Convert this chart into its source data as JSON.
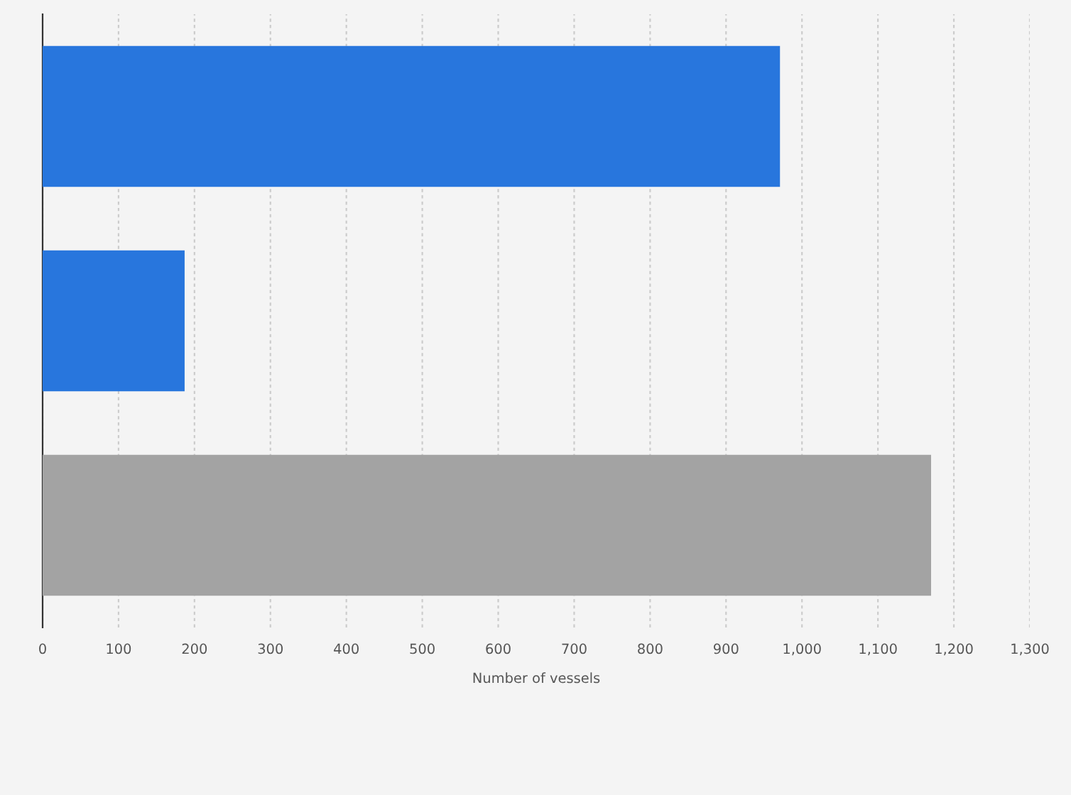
{
  "chart_data": {
    "type": "bar",
    "orientation": "horizontal",
    "categories": [
      null,
      null,
      null
    ],
    "values": [
      971,
      187,
      1170
    ],
    "colors": [
      "#2876dd",
      "#2876dd",
      "#a3a3a3"
    ],
    "xlabel": "Number of vessels",
    "xlim": [
      0,
      1300
    ],
    "xticks": [
      0,
      100,
      200,
      300,
      400,
      500,
      600,
      700,
      800,
      900,
      {
        "value": 1000,
        "label": "1,000"
      },
      {
        "value": 1100,
        "label": "1,100"
      },
      {
        "value": 1200,
        "label": "1,200"
      },
      {
        "value": 1300,
        "label": "1,300"
      }
    ],
    "grid": "x",
    "legend": false
  }
}
